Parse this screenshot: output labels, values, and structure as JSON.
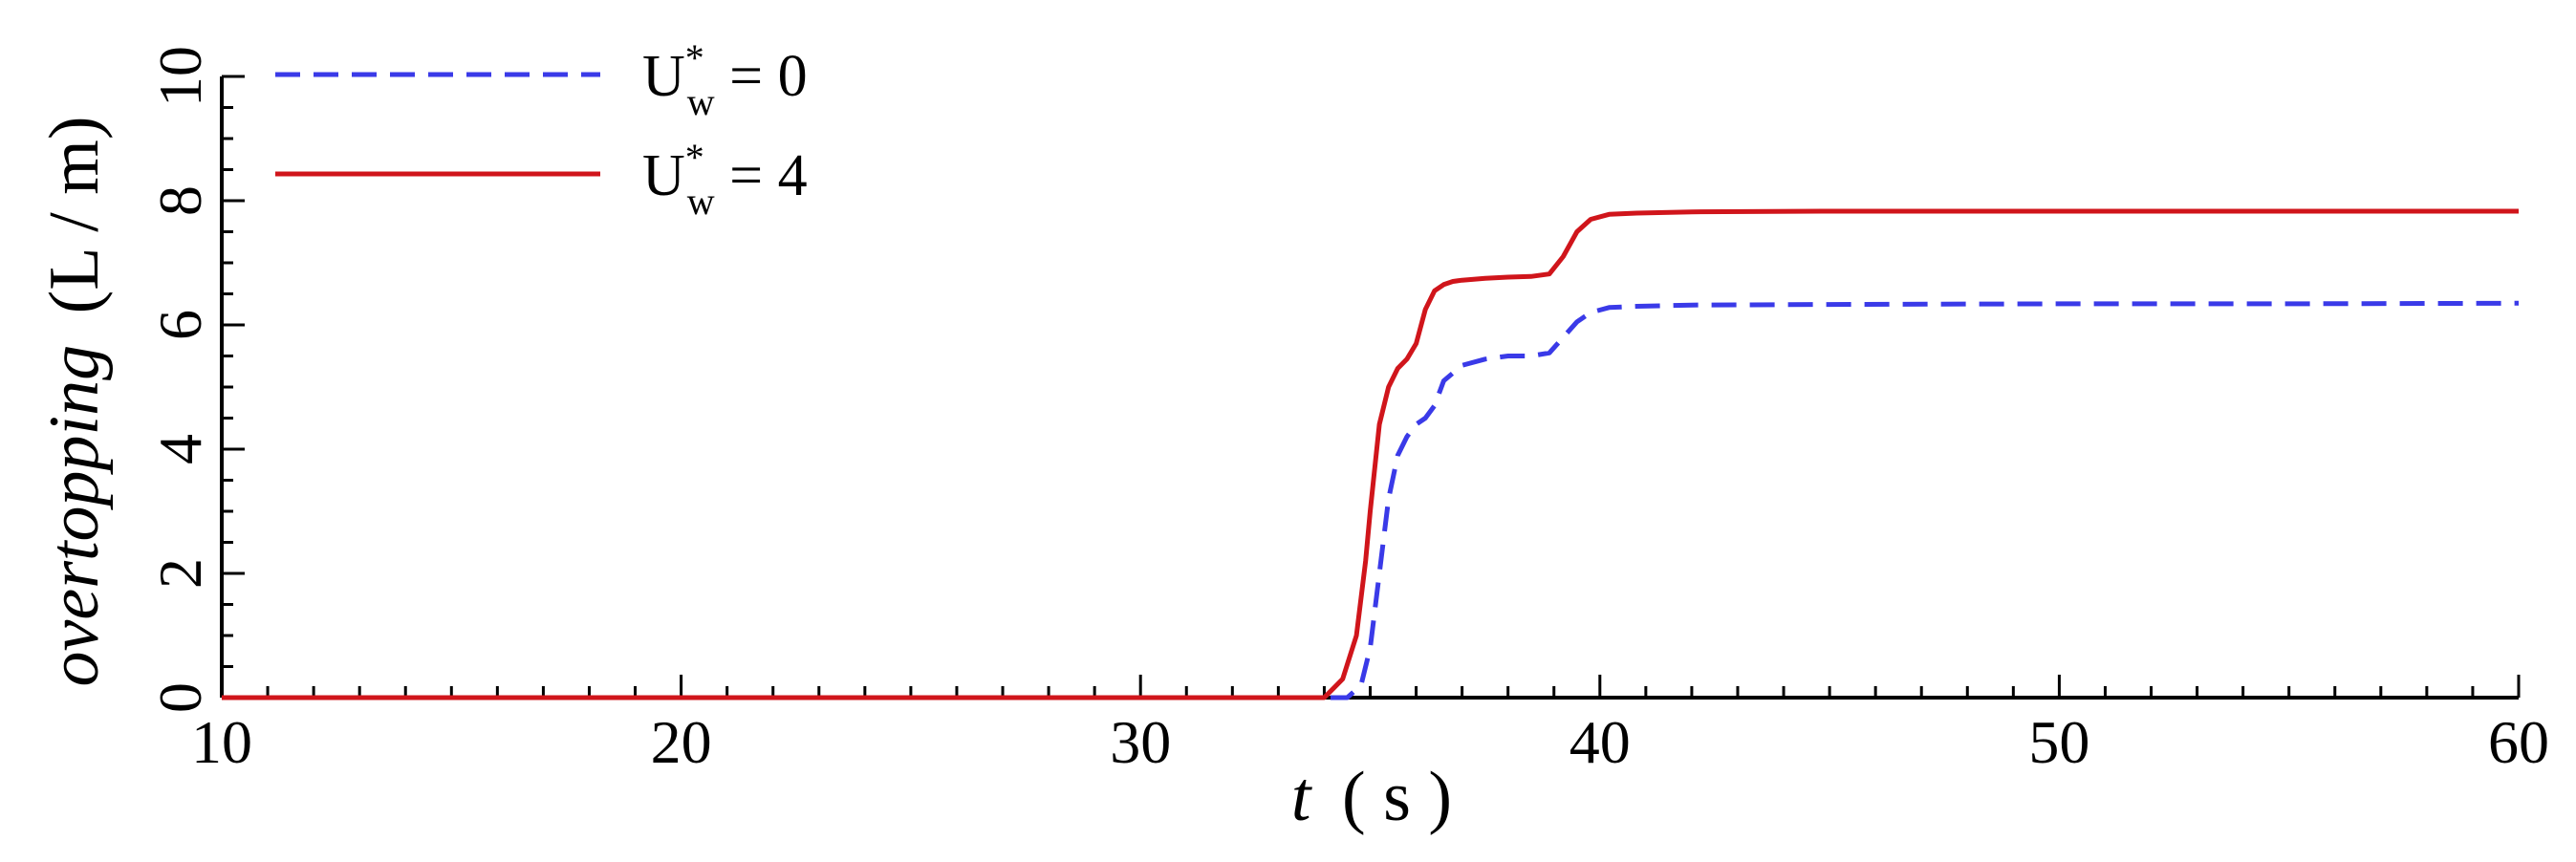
{
  "chart_data": {
    "type": "line",
    "xlabel": {
      "var": "t",
      "unit": "( s )"
    },
    "ylabel": {
      "var": "overtopping",
      "unit": "(L / m)"
    },
    "xlim": [
      10,
      60
    ],
    "ylim": [
      0,
      10
    ],
    "xticks": [
      10,
      20,
      30,
      40,
      50,
      60
    ],
    "yticks": [
      0,
      2,
      4,
      6,
      8,
      10
    ],
    "grid": false,
    "legend_position": "top-left",
    "series": [
      {
        "name": "U*w = 0",
        "legend_label": {
          "base": "U",
          "sup": "*",
          "sub": "w",
          "rest": " = 0"
        },
        "color": "#3a3ae8",
        "style": "dashed",
        "x": [
          10,
          20,
          30,
          34.0,
          34.5,
          34.8,
          35.0,
          35.2,
          35.4,
          35.6,
          35.8,
          36.0,
          36.2,
          36.4,
          36.6,
          37.0,
          37.5,
          38.0,
          38.5,
          38.9,
          39.2,
          39.5,
          39.8,
          40.2,
          40.8,
          42.0,
          45.0,
          50.0,
          55.0,
          60.0
        ],
        "y": [
          0,
          0,
          0,
          0,
          0,
          0.2,
          0.8,
          2.0,
          3.2,
          3.9,
          4.2,
          4.4,
          4.5,
          4.7,
          5.1,
          5.35,
          5.45,
          5.5,
          5.5,
          5.55,
          5.8,
          6.05,
          6.2,
          6.28,
          6.3,
          6.32,
          6.33,
          6.34,
          6.34,
          6.35
        ]
      },
      {
        "name": "U*w = 4",
        "legend_label": {
          "base": "U",
          "sup": "*",
          "sub": "w",
          "rest": " = 4"
        },
        "color": "#d0151b",
        "style": "solid",
        "x": [
          10,
          20,
          30,
          34.0,
          34.4,
          34.7,
          34.9,
          35.0,
          35.2,
          35.4,
          35.6,
          35.8,
          36.0,
          36.2,
          36.4,
          36.6,
          36.8,
          37.0,
          37.5,
          38.0,
          38.5,
          38.9,
          39.2,
          39.5,
          39.8,
          40.2,
          40.8,
          42.0,
          45.0,
          50.0,
          55.0,
          60.0
        ],
        "y": [
          0,
          0,
          0,
          0,
          0.3,
          1.0,
          2.2,
          3.0,
          4.4,
          5.0,
          5.3,
          5.45,
          5.7,
          6.25,
          6.55,
          6.65,
          6.7,
          6.72,
          6.75,
          6.77,
          6.78,
          6.82,
          7.1,
          7.5,
          7.7,
          7.78,
          7.8,
          7.82,
          7.83,
          7.83,
          7.83,
          7.83
        ]
      }
    ]
  }
}
